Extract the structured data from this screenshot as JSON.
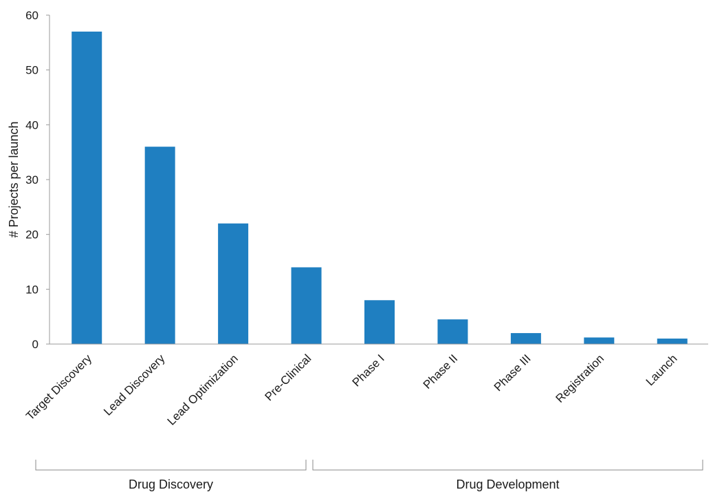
{
  "chart_data": {
    "type": "bar",
    "title": "",
    "xlabel": "",
    "ylabel": "# Projects per launch",
    "ylim": [
      0,
      60
    ],
    "yticks": [
      0,
      10,
      20,
      30,
      40,
      50,
      60
    ],
    "grid": false,
    "bar_color": "#1f7fc1",
    "categories": [
      "Target Discovery",
      "Lead Discovery",
      "Lead Optimization",
      "Pre-Clinical",
      "Phase I",
      "Phase II",
      "Phase III",
      "Registration",
      "Launch"
    ],
    "values": [
      57,
      36,
      22,
      14,
      8,
      4.5,
      2,
      1.2,
      1
    ],
    "groups": [
      {
        "label": "Drug Discovery",
        "categories": [
          "Target Discovery",
          "Lead Discovery",
          "Lead Optimization",
          "Pre-Clinical"
        ]
      },
      {
        "label": "Drug Development",
        "categories": [
          "Phase I",
          "Phase II",
          "Phase III",
          "Registration",
          "Launch"
        ]
      }
    ]
  }
}
